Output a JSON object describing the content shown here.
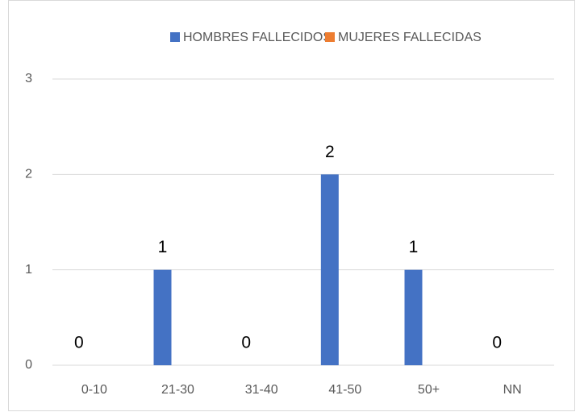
{
  "chart_data": {
    "type": "bar",
    "categories": [
      "0-10",
      "21-30",
      "31-40",
      "41-50",
      "50+",
      "NN"
    ],
    "series": [
      {
        "name": "HOMBRES FALLECIDOS",
        "color": "#4472c4",
        "values": [
          0,
          1,
          0,
          2,
          1,
          0
        ],
        "show_labels": true
      },
      {
        "name": "MUJERES FALLECIDAS",
        "color": "#ed7d31",
        "values": [
          0,
          0,
          0,
          0,
          0,
          0
        ],
        "show_labels": false
      }
    ],
    "ylim": [
      0,
      3
    ],
    "yticks": [
      0,
      1,
      2,
      3
    ],
    "grid": true,
    "legend": "top"
  }
}
